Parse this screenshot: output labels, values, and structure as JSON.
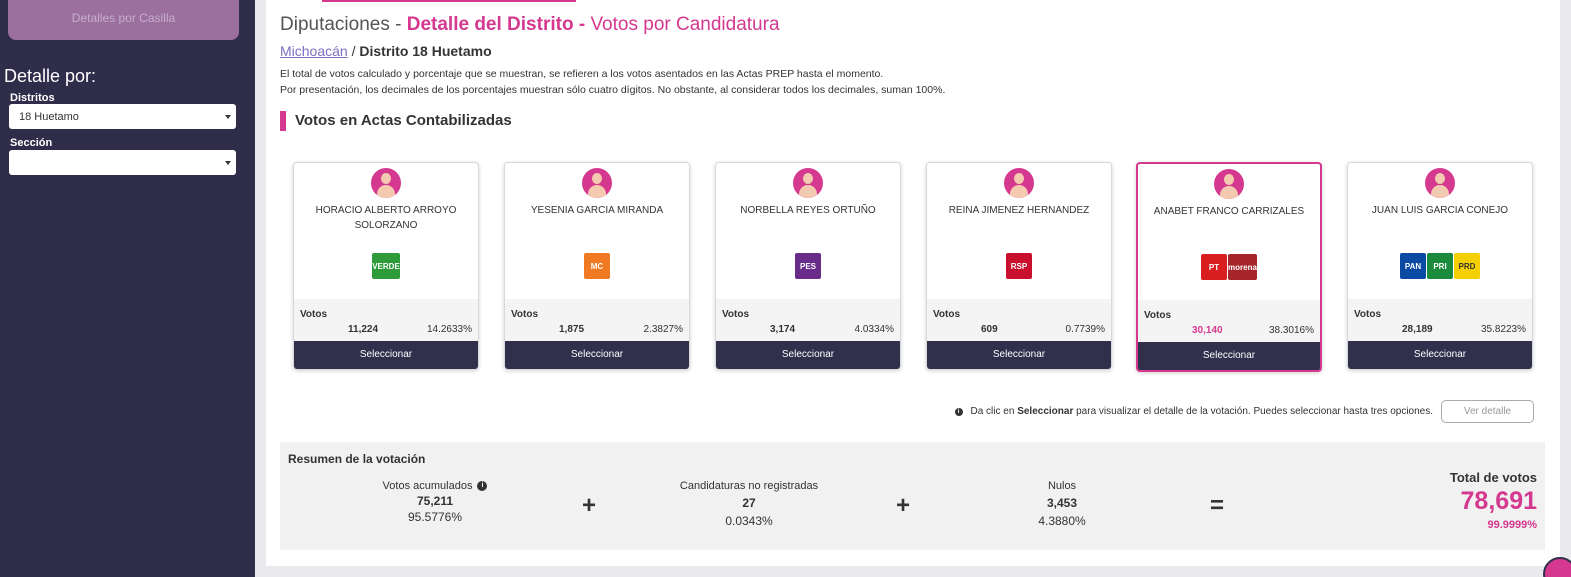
{
  "sidebar": {
    "casilla_button": "Detalles por Casilla",
    "detalle_title": "Detalle por:",
    "distritos_label": "Distritos",
    "distritos_value": "18 Huetamo",
    "seccion_label": "Sección",
    "seccion_value": ""
  },
  "header": {
    "title_part1": "Diputaciones - ",
    "title_part2": "Detalle del Distrito - ",
    "title_part3": "Votos por Candidatura",
    "breadcrumb_link": "Michoacán",
    "breadcrumb_sep": " / ",
    "breadcrumb_current": "Distrito 18 Huetamo",
    "note1": "El total de votos calculado y porcentaje que se muestran, se refieren a los votos asentados en las Actas PREP hasta el momento.",
    "note2": "Por presentación, los decimales de los porcentajes muestran sólo cuatro dígitos. No obstante, al considerar todos los decimales, suman 100%.",
    "section_title": "Votos en Actas Contabilizadas"
  },
  "candidates": [
    {
      "name": "HORACIO ALBERTO ARROYO SOLORZANO",
      "votes_label": "Votos",
      "votes": "11,224",
      "pct": "14.2633%",
      "button": "Seleccionar",
      "logos": [
        {
          "text": "VERDE",
          "color": "#2e9b3a",
          "icon": "verde-logo"
        }
      ]
    },
    {
      "name": "YESENIA GARCIA MIRANDA",
      "votes_label": "Votos",
      "votes": "1,875",
      "pct": "2.3827%",
      "button": "Seleccionar",
      "logos": [
        {
          "text": "MC",
          "color": "#f07a24",
          "icon": "movimiento-ciudadano-logo"
        }
      ]
    },
    {
      "name": "NORBELLA REYES ORTUÑO",
      "votes_label": "Votos",
      "votes": "3,174",
      "pct": "4.0334%",
      "button": "Seleccionar",
      "logos": [
        {
          "text": "PES",
          "color": "#6a2c8a",
          "icon": "pes-logo"
        }
      ]
    },
    {
      "name": "REINA JIMENEZ HERNANDEZ",
      "votes_label": "Votos",
      "votes": "609",
      "pct": "0.7739%",
      "button": "Seleccionar",
      "logos": [
        {
          "text": "RSP",
          "color": "#c8102e",
          "icon": "rsp-logo"
        }
      ]
    },
    {
      "name": "ANABET FRANCO CARRIZALES",
      "votes_label": "Votos",
      "votes": "30,140",
      "pct": "38.3016%",
      "button": "Seleccionar",
      "logos": [
        {
          "text": "PT",
          "color": "#d81e1e",
          "icon": "pt-logo"
        },
        {
          "text": "morena",
          "color": "#a5252a",
          "icon": "morena-logo"
        }
      ]
    },
    {
      "name": "JUAN LUIS GARCIA CONEJO",
      "votes_label": "Votos",
      "votes": "28,189",
      "pct": "35.8223%",
      "button": "Seleccionar",
      "logos": [
        {
          "text": "PAN",
          "color": "#0a4aa3",
          "icon": "pan-logo"
        },
        {
          "text": "PRI",
          "color": "#1b8a3c",
          "icon": "pri-logo"
        },
        {
          "text": "PRD",
          "color": "#f5d000",
          "icon": "prd-logo"
        }
      ]
    }
  ],
  "info": {
    "text_before": "Da clic en ",
    "text_bold": "Seleccionar",
    "text_after": " para visualizar el detalle de la votación. Puedes seleccionar hasta tres opciones.",
    "ver_button": "Ver detalle"
  },
  "summary": {
    "title": "Resumen de la votación",
    "acumulados_label": "Votos acumulados",
    "acumulados_value": "75,211",
    "acumulados_pct": "95.5776%",
    "no_registradas_label": "Candidaturas no registradas",
    "no_registradas_value": "27",
    "no_registradas_pct": "0.0343%",
    "nulos_label": "Nulos",
    "nulos_value": "3,453",
    "nulos_pct": "4.3880%",
    "plus": "+",
    "equals": "=",
    "total_label": "Total de votos",
    "total_value": "78,691",
    "total_pct": "99.9999%"
  },
  "colors": {
    "accent": "#d5388f",
    "sidebar": "#2f2d4a",
    "button": "#302f4c"
  }
}
